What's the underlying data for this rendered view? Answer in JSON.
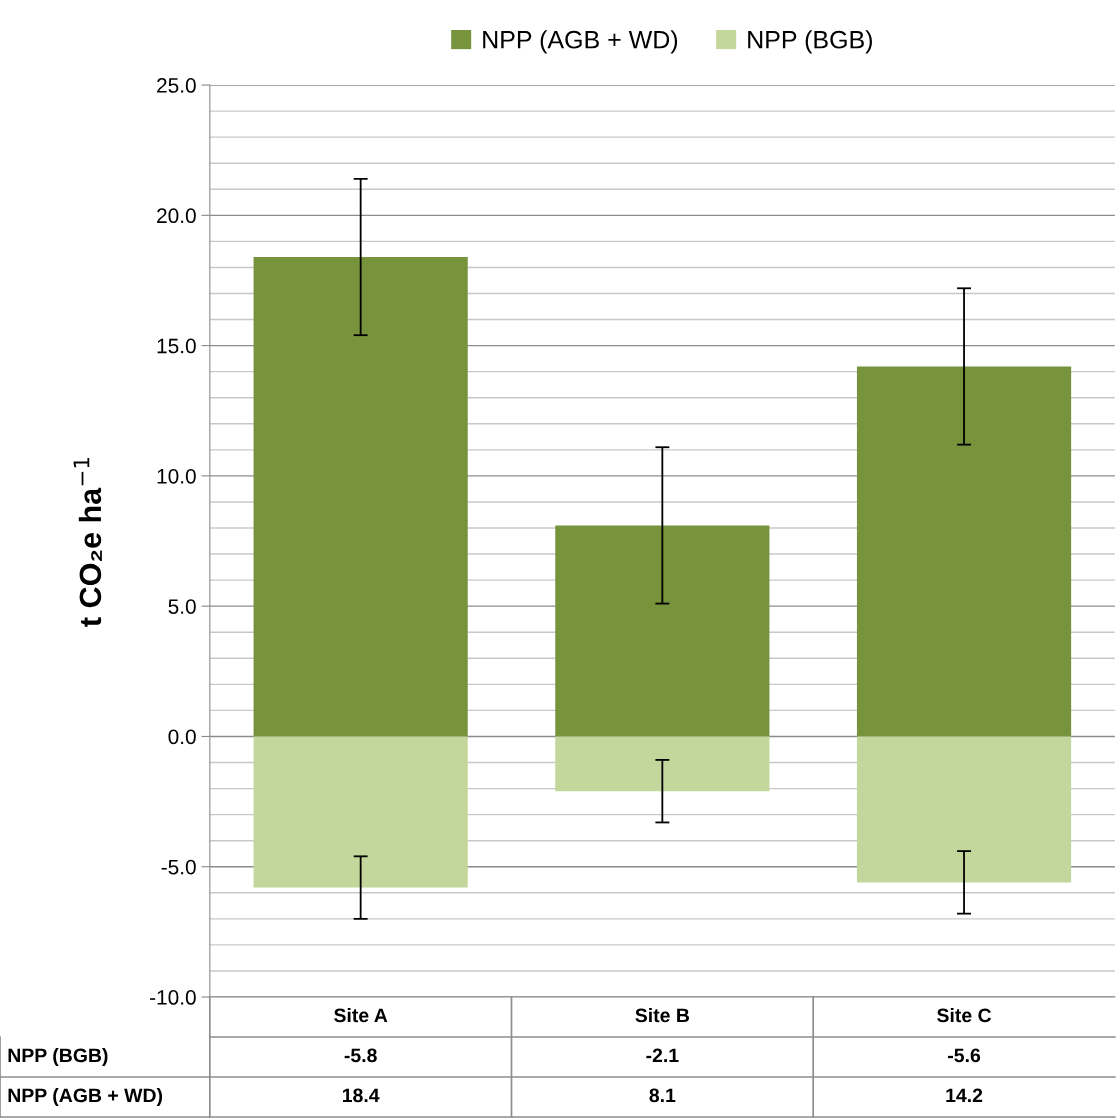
{
  "chart_data": {
    "type": "bar",
    "stacked": true,
    "ylabel": "t CO₂e ha$^{−1}$",
    "categories": [
      "Site A",
      "Site B",
      "Site C"
    ],
    "series": [
      {
        "name": "NPP (AGB + WD)",
        "color": "#77933c",
        "values": [
          18.4,
          8.1,
          14.2
        ],
        "errors": [
          3.0,
          3.0,
          3.0
        ]
      },
      {
        "name": "NPP (BGB)",
        "color": "#c3d69b",
        "values": [
          -5.8,
          -2.1,
          -5.6
        ],
        "errors": [
          1.2,
          1.2,
          1.2
        ]
      }
    ],
    "ylim": [
      -10,
      25
    ],
    "yticks": [
      {
        "value": -10,
        "label": "-10.0"
      },
      {
        "value": -9,
        "label": null
      },
      {
        "value": -8,
        "label": null
      },
      {
        "value": -7,
        "label": null
      },
      {
        "value": -6,
        "label": null
      },
      {
        "value": -5,
        "label": "-5.0"
      },
      {
        "value": -4,
        "label": null
      },
      {
        "value": -3,
        "label": null
      },
      {
        "value": -2,
        "label": null
      },
      {
        "value": -1,
        "label": null
      },
      {
        "value": 0,
        "label": "0.0"
      },
      {
        "value": 1,
        "label": null
      },
      {
        "value": 2,
        "label": null
      },
      {
        "value": 3,
        "label": null
      },
      {
        "value": 4,
        "label": null
      },
      {
        "value": 5,
        "label": "5.0"
      },
      {
        "value": 6,
        "label": null
      },
      {
        "value": 7,
        "label": null
      },
      {
        "value": 8,
        "label": null
      },
      {
        "value": 9,
        "label": null
      },
      {
        "value": 10,
        "label": "10.0"
      },
      {
        "value": 11,
        "label": null
      },
      {
        "value": 12,
        "label": null
      },
      {
        "value": 13,
        "label": null
      },
      {
        "value": 14,
        "label": null
      },
      {
        "value": 15,
        "label": "15.0"
      },
      {
        "value": 16,
        "label": null
      },
      {
        "value": 17,
        "label": null
      },
      {
        "value": 18,
        "label": null
      },
      {
        "value": 19,
        "label": null
      },
      {
        "value": 20,
        "label": "20.0"
      },
      {
        "value": 21,
        "label": null
      },
      {
        "value": 22,
        "label": null
      },
      {
        "value": 23,
        "label": null
      },
      {
        "value": 24,
        "label": null
      },
      {
        "value": 25,
        "label": "25.0"
      }
    ],
    "grid": "y",
    "legend": "top",
    "data_labels": true
  }
}
